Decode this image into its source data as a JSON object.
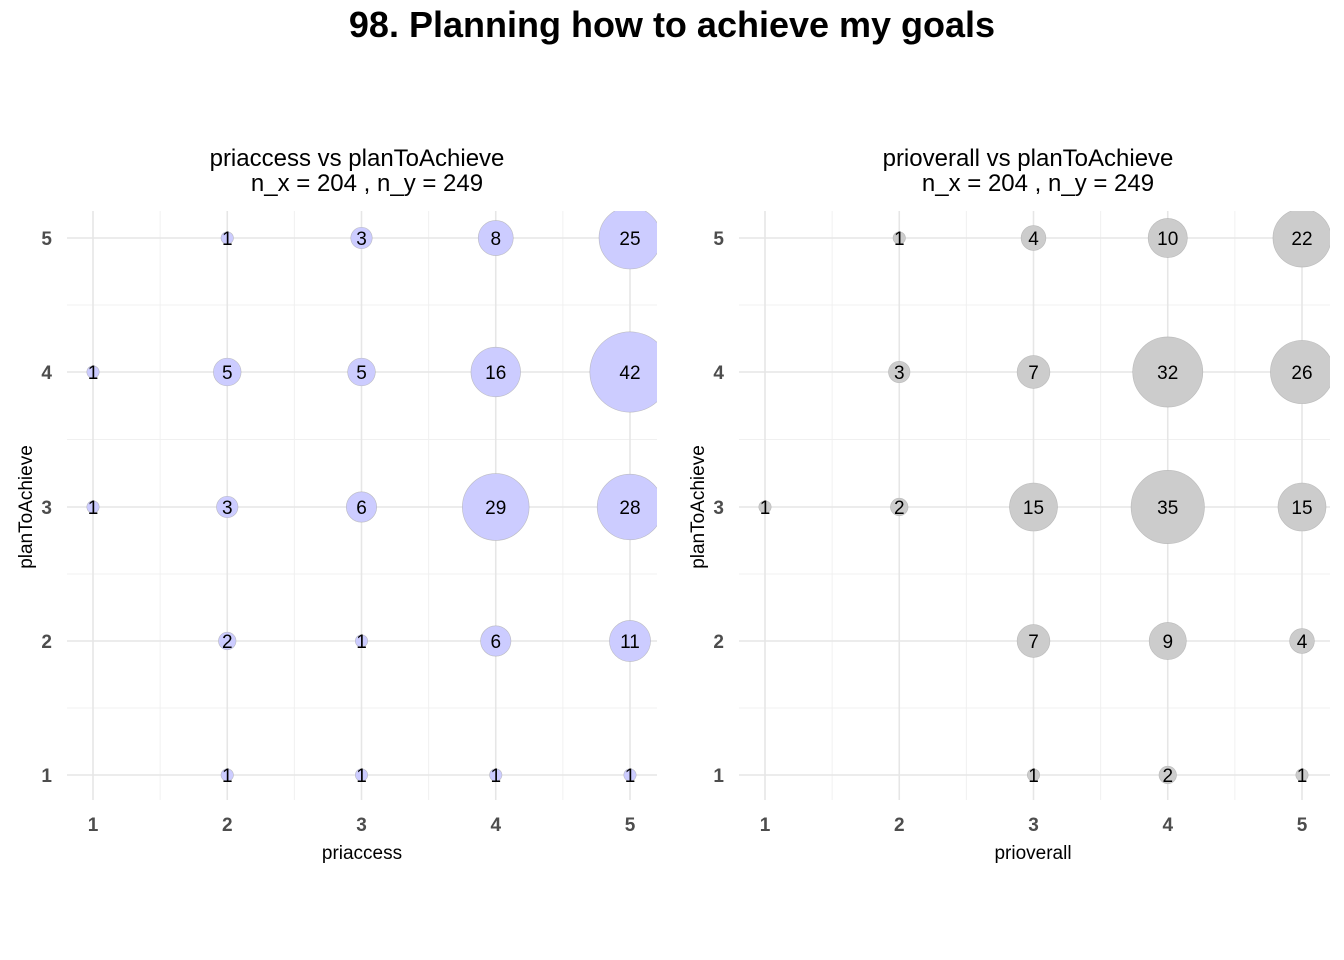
{
  "title": "98. Planning how to achieve my goals",
  "chart_data": [
    {
      "type": "scatter",
      "subtitle_line1": "priaccess vs planToAchieve",
      "subtitle_line2": "n_x = 204 , n_y = 249",
      "xlabel": "priaccess",
      "ylabel": "planToAchieve",
      "x_ticks": [
        "1",
        "2",
        "3",
        "4",
        "5"
      ],
      "y_ticks": [
        "1",
        "2",
        "3",
        "4",
        "5"
      ],
      "xlim": [
        1,
        5
      ],
      "ylim": [
        1,
        5
      ],
      "grid": true,
      "bubble_color": "#ccccff",
      "points": [
        {
          "x": 2,
          "y": 5,
          "count": 1
        },
        {
          "x": 3,
          "y": 5,
          "count": 3
        },
        {
          "x": 4,
          "y": 5,
          "count": 8
        },
        {
          "x": 5,
          "y": 5,
          "count": 25
        },
        {
          "x": 1,
          "y": 4,
          "count": 1
        },
        {
          "x": 2,
          "y": 4,
          "count": 5
        },
        {
          "x": 3,
          "y": 4,
          "count": 5
        },
        {
          "x": 4,
          "y": 4,
          "count": 16
        },
        {
          "x": 5,
          "y": 4,
          "count": 42
        },
        {
          "x": 1,
          "y": 3,
          "count": 1
        },
        {
          "x": 2,
          "y": 3,
          "count": 3
        },
        {
          "x": 3,
          "y": 3,
          "count": 6
        },
        {
          "x": 4,
          "y": 3,
          "count": 29
        },
        {
          "x": 5,
          "y": 3,
          "count": 28
        },
        {
          "x": 2,
          "y": 2,
          "count": 2
        },
        {
          "x": 3,
          "y": 2,
          "count": 1
        },
        {
          "x": 4,
          "y": 2,
          "count": 6
        },
        {
          "x": 5,
          "y": 2,
          "count": 11
        },
        {
          "x": 2,
          "y": 1,
          "count": 1
        },
        {
          "x": 3,
          "y": 1,
          "count": 1
        },
        {
          "x": 4,
          "y": 1,
          "count": 1
        },
        {
          "x": 5,
          "y": 1,
          "count": 1
        }
      ]
    },
    {
      "type": "scatter",
      "subtitle_line1": "prioverall vs planToAchieve",
      "subtitle_line2": "n_x = 204 , n_y = 249",
      "xlabel": "prioverall",
      "ylabel": "planToAchieve",
      "x_ticks": [
        "1",
        "2",
        "3",
        "4",
        "5"
      ],
      "y_ticks": [
        "1",
        "2",
        "3",
        "4",
        "5"
      ],
      "xlim": [
        1,
        5
      ],
      "ylim": [
        1,
        5
      ],
      "grid": true,
      "bubble_color": "#cccccc",
      "points": [
        {
          "x": 2,
          "y": 5,
          "count": 1
        },
        {
          "x": 3,
          "y": 5,
          "count": 4
        },
        {
          "x": 4,
          "y": 5,
          "count": 10
        },
        {
          "x": 5,
          "y": 5,
          "count": 22
        },
        {
          "x": 2,
          "y": 4,
          "count": 3
        },
        {
          "x": 3,
          "y": 4,
          "count": 7
        },
        {
          "x": 4,
          "y": 4,
          "count": 32
        },
        {
          "x": 5,
          "y": 4,
          "count": 26
        },
        {
          "x": 1,
          "y": 3,
          "count": 1
        },
        {
          "x": 2,
          "y": 3,
          "count": 2
        },
        {
          "x": 3,
          "y": 3,
          "count": 15
        },
        {
          "x": 4,
          "y": 3,
          "count": 35
        },
        {
          "x": 5,
          "y": 3,
          "count": 15
        },
        {
          "x": 3,
          "y": 2,
          "count": 7
        },
        {
          "x": 4,
          "y": 2,
          "count": 9
        },
        {
          "x": 5,
          "y": 2,
          "count": 4
        },
        {
          "x": 3,
          "y": 1,
          "count": 1
        },
        {
          "x": 4,
          "y": 1,
          "count": 2
        },
        {
          "x": 5,
          "y": 1,
          "count": 1
        }
      ]
    }
  ]
}
